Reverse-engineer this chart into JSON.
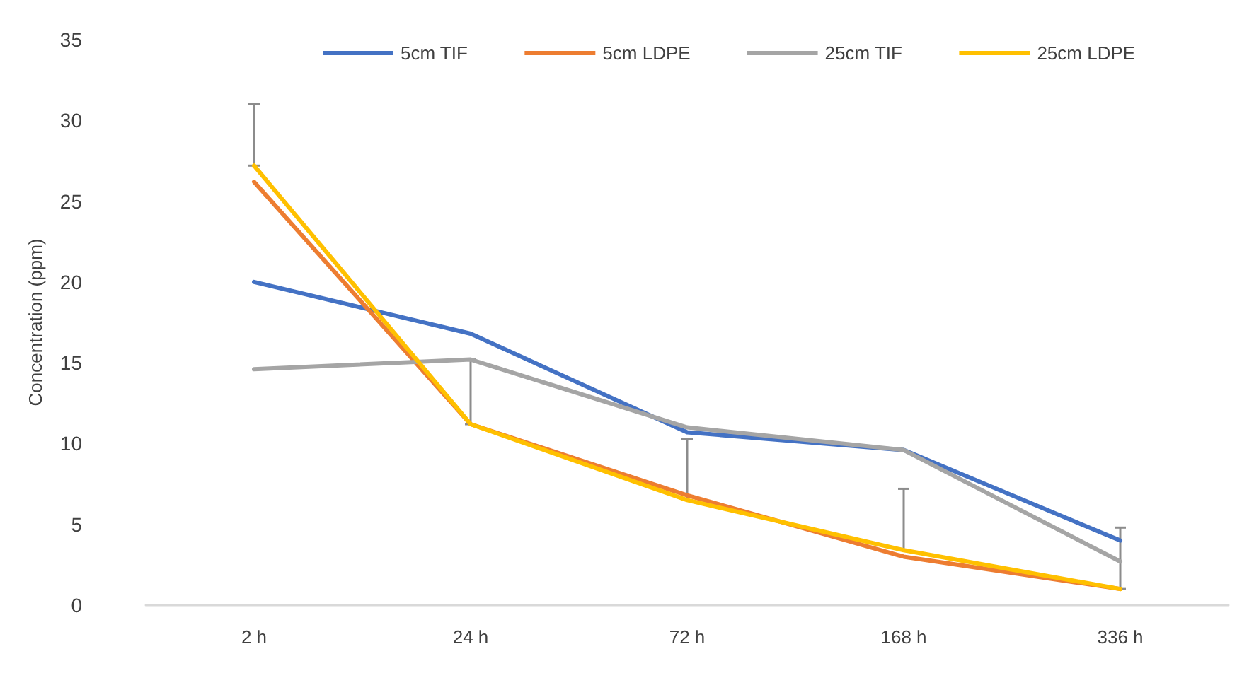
{
  "chart_data": {
    "type": "line",
    "ylabel": "Concentration (ppm)",
    "categories": [
      "2 h",
      "24 h",
      "72 h",
      "168 h",
      "336 h"
    ],
    "series": [
      {
        "name": "5cm TIF",
        "color": "#4472c4",
        "values": [
          20.0,
          16.8,
          10.7,
          9.6,
          4.0
        ]
      },
      {
        "name": "5cm LDPE",
        "color": "#ed7d31",
        "values": [
          26.2,
          11.2,
          6.8,
          3.0,
          1.0
        ]
      },
      {
        "name": "25cm TIF",
        "color": "#a5a5a5",
        "values": [
          14.6,
          15.2,
          11.0,
          9.6,
          2.7
        ]
      },
      {
        "name": "25cm LDPE",
        "color": "#ffc000",
        "values": [
          27.2,
          11.2,
          6.5,
          3.4,
          1.0
        ],
        "errors": [
          [
            27.2,
            31.0
          ],
          [
            11.2,
            15.2
          ],
          [
            6.5,
            10.3
          ],
          [
            3.4,
            7.2
          ],
          [
            1.0,
            4.8
          ]
        ]
      }
    ],
    "ylim": [
      0,
      35
    ],
    "yticks": [
      0,
      5,
      10,
      15,
      20,
      25,
      30,
      35
    ],
    "legend": "top",
    "marker": "none",
    "line_style": "solid"
  }
}
